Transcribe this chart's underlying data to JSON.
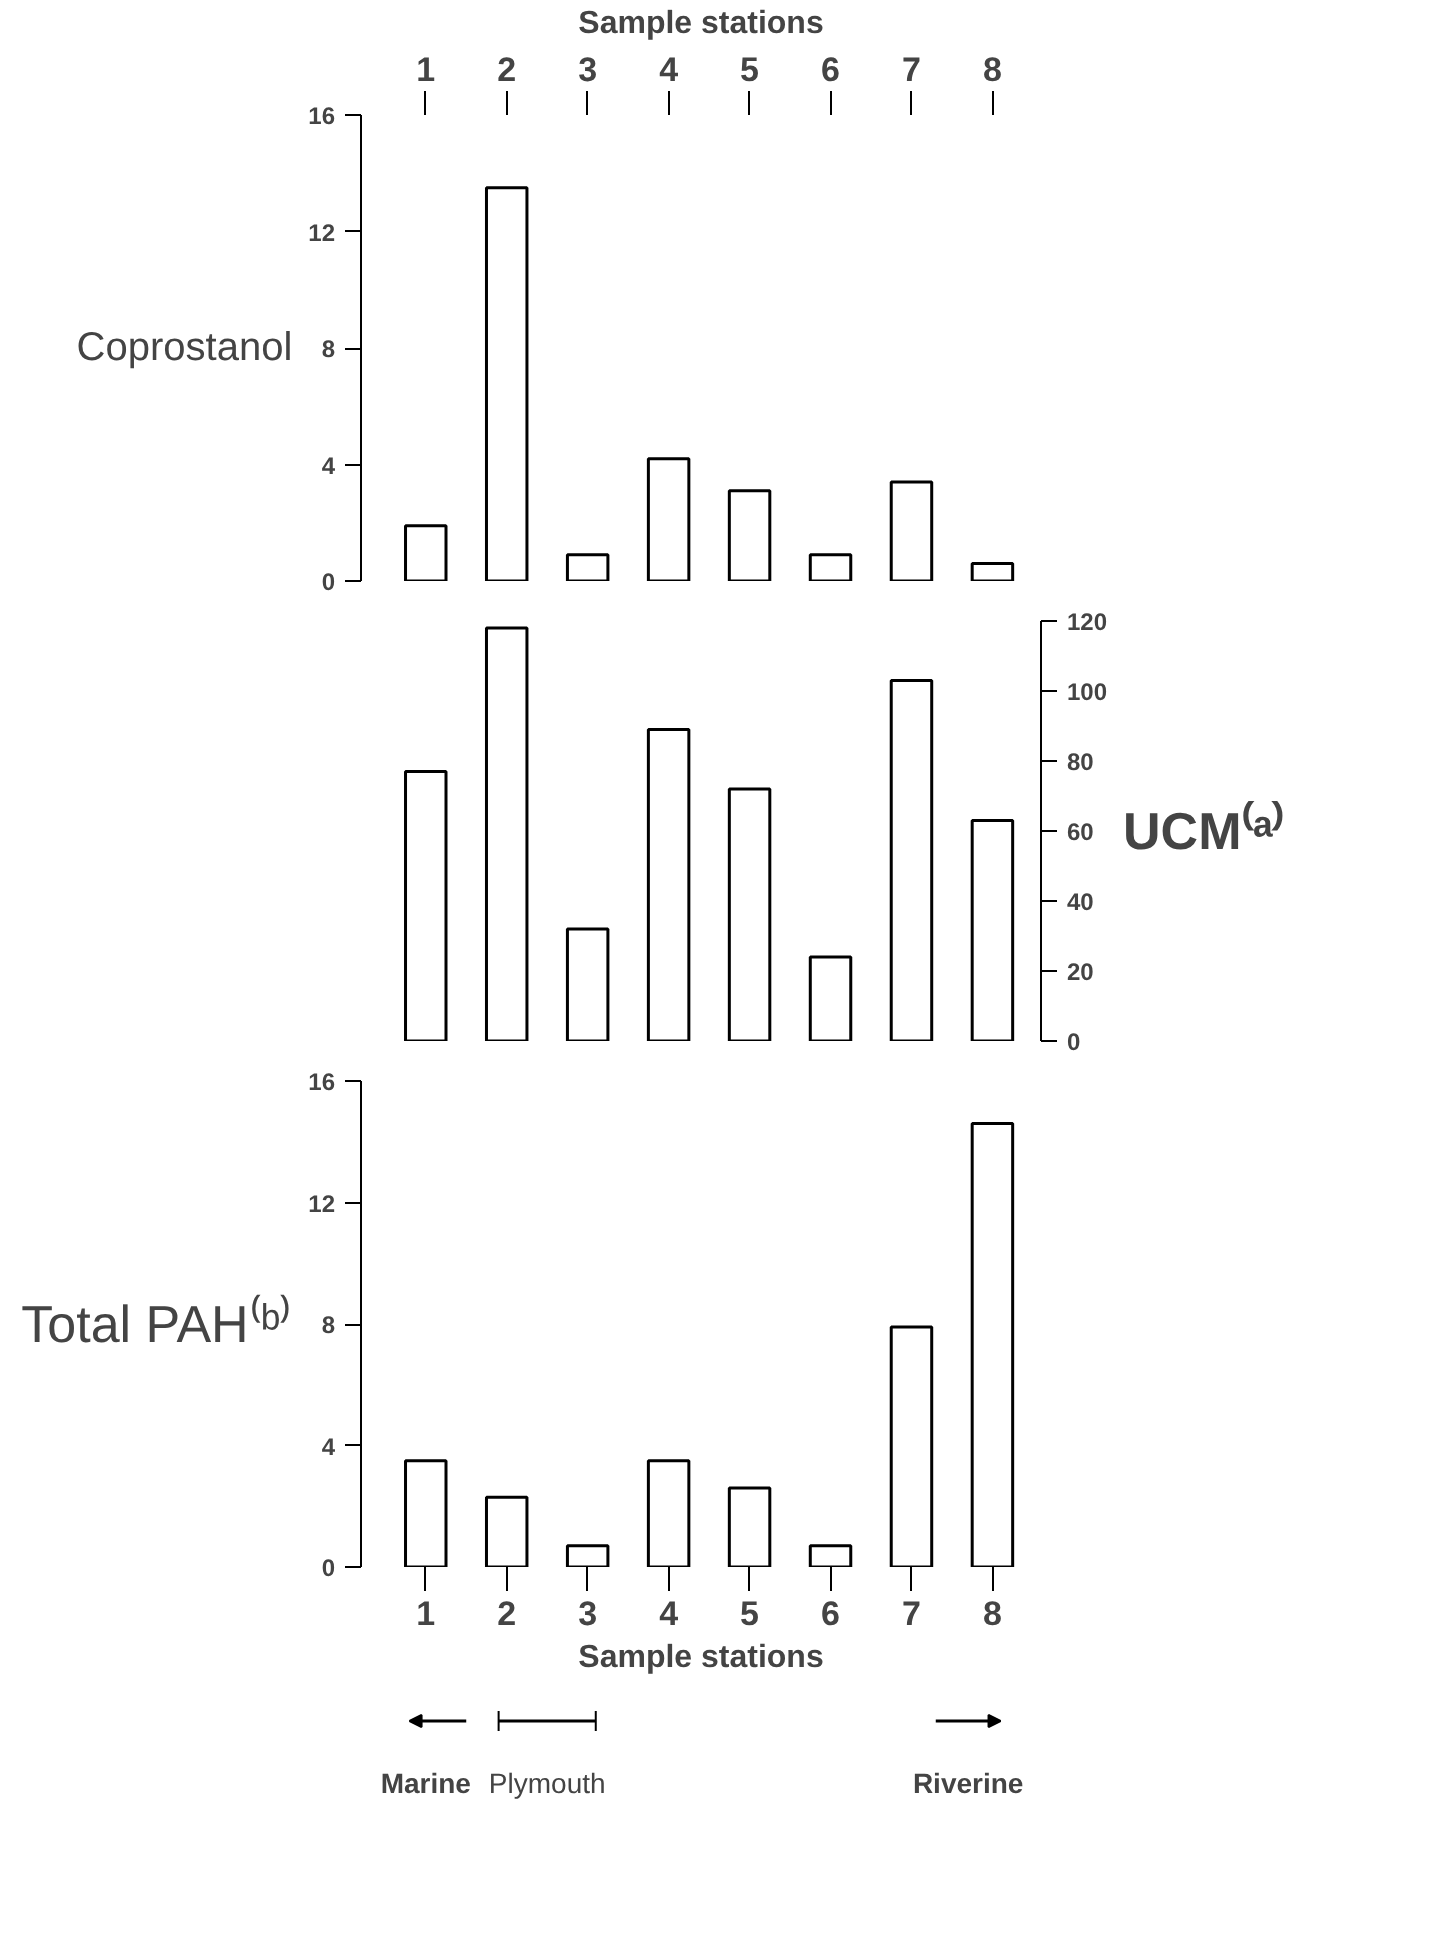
{
  "chart_data": [
    {
      "type": "bar",
      "x2label": "Sample stations",
      "ylabel": "Coprostanol",
      "categories": [
        "1",
        "2",
        "3",
        "4",
        "5",
        "6",
        "7",
        "8"
      ],
      "series": [
        {
          "color": "#ffffff",
          "values": [
            1.9,
            13.5,
            0.9,
            4.2,
            3.1,
            0.9,
            3.4,
            0.6
          ]
        }
      ],
      "ylim": [
        0,
        16
      ],
      "yticks": [
        0,
        4,
        8,
        12,
        16
      ]
    },
    {
      "type": "bar",
      "y2label": "UCM⁽ᵃ⁾",
      "categories": [
        "1",
        "2",
        "3",
        "4",
        "5",
        "6",
        "7",
        "8"
      ],
      "tick_labels": "y",
      "series": [
        {
          "color": "#ffffff",
          "axis": "y2",
          "values": [
            77,
            118,
            32,
            89,
            72,
            24,
            103,
            63
          ]
        }
      ],
      "y2lim": [
        0,
        120
      ],
      "y2ticks": [
        0,
        20,
        40,
        60,
        80,
        100,
        120
      ]
    },
    {
      "type": "bar",
      "xlabel": "Sample stations",
      "ylabel": "Total PAH⁽ᵇ⁾",
      "categories": [
        "1",
        "2",
        "3",
        "4",
        "5",
        "6",
        "7",
        "8"
      ],
      "series": [
        {
          "color": "#ffffff",
          "values": [
            3.5,
            2.3,
            0.7,
            3.5,
            2.6,
            0.7,
            7.9,
            14.6
          ]
        }
      ],
      "ylim": [
        0,
        16
      ],
      "yticks": [
        0,
        4,
        8,
        12,
        16
      ],
      "annotations": [
        "Marine",
        "Plymouth",
        "Riverine"
      ]
    }
  ]
}
